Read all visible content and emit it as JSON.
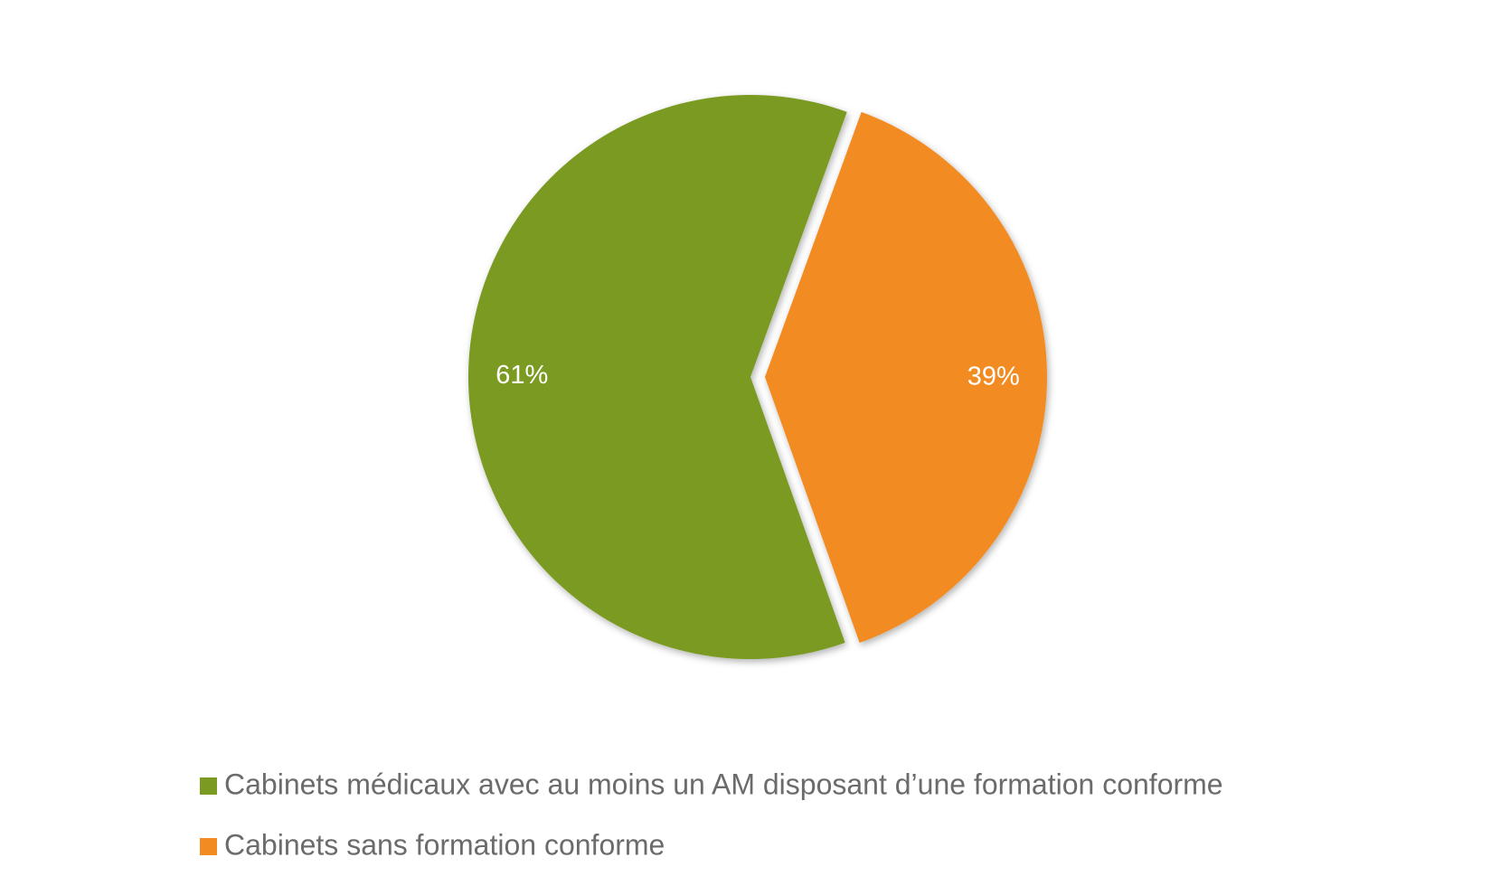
{
  "chart_data": {
    "type": "pie",
    "categories": [
      "Cabinets médicaux avec au moins un AM disposant d’une formation conforme",
      "Cabinets sans formation conforme"
    ],
    "values": [
      61,
      39
    ],
    "value_labels": [
      "61%",
      "39%"
    ],
    "colors": [
      "#7a9a21",
      "#f28b22"
    ]
  }
}
